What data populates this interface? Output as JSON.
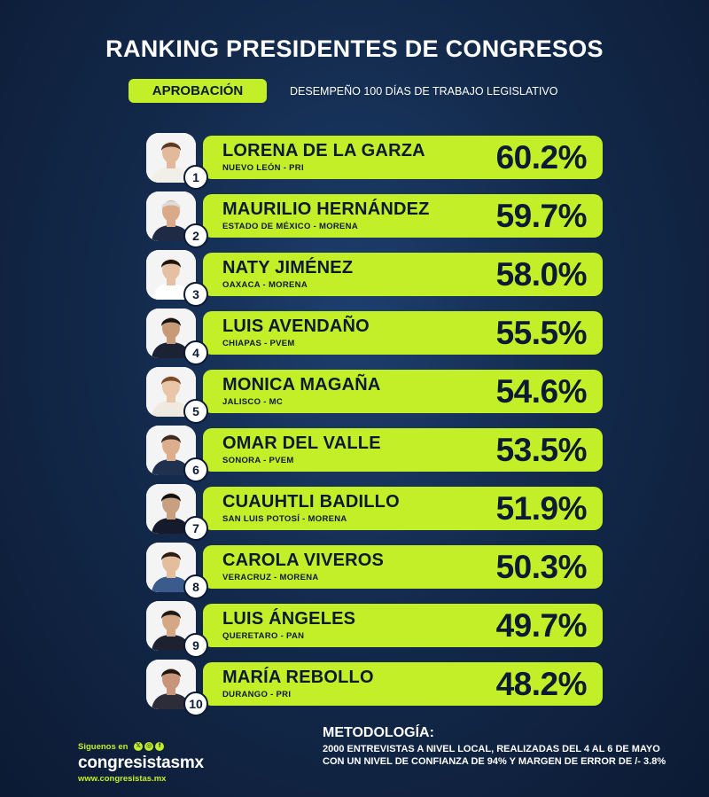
{
  "header": {
    "title": "RANKING PRESIDENTES DE CONGRESOS",
    "badge_label": "APROBACIÓN",
    "subtitle": "DESEMPEÑO 100 DÍAS DE TRABAJO LEGISLATIVO"
  },
  "colors": {
    "accent": "#c3ef28",
    "background": "#132a4c",
    "text_dark": "#0c1a33"
  },
  "ranking": [
    {
      "rank": "1",
      "name": "LORENA DE LA GARZA",
      "region": "NUEVO LEÓN - PRI",
      "approval": "60.2%"
    },
    {
      "rank": "2",
      "name": "MAURILIO HERNÁNDEZ",
      "region": "ESTADO DE MÉXICO - MORENA",
      "approval": "59.7%"
    },
    {
      "rank": "3",
      "name": "NATY JIMÉNEZ",
      "region": "OAXACA - MORENA",
      "approval": "58.0%"
    },
    {
      "rank": "4",
      "name": "LUIS AVENDAÑO",
      "region": "CHIAPAS - PVEM",
      "approval": "55.5%"
    },
    {
      "rank": "5",
      "name": "MONICA MAGAÑA",
      "region": "JALISCO - MC",
      "approval": "54.6%"
    },
    {
      "rank": "6",
      "name": "OMAR DEL VALLE",
      "region": "SONORA - PVEM",
      "approval": "53.5%"
    },
    {
      "rank": "7",
      "name": "CUAUHTLI BADILLO",
      "region": "SAN LUIS POTOSÍ - MORENA",
      "approval": "51.9%"
    },
    {
      "rank": "8",
      "name": "CAROLA VIVEROS",
      "region": "VERACRUZ - MORENA",
      "approval": "50.3%"
    },
    {
      "rank": "9",
      "name": "LUIS ÁNGELES",
      "region": "QUERETARO - PAN",
      "approval": "49.7%"
    },
    {
      "rank": "10",
      "name": "MARÍA REBOLLO",
      "region": "DURANGO - PRI",
      "approval": "48.2%"
    }
  ],
  "footer": {
    "follow_label": "Siguenos en",
    "social_icons": [
      "x-icon",
      "instagram-icon",
      "facebook-icon"
    ],
    "brand": "congresistasmx",
    "website": "www.congresistas.mx",
    "methodology_title": "METODOLOGÍA:",
    "methodology_line1": "2000 ENTREVISTAS A NIVEL LOCAL, REALIZADAS DEL 4 AL 6 DE MAYO",
    "methodology_line2": "CON UN NIVEL DE CONFIANZA DE 94% Y MARGEN DE ERROR DE /- 3.8%"
  }
}
